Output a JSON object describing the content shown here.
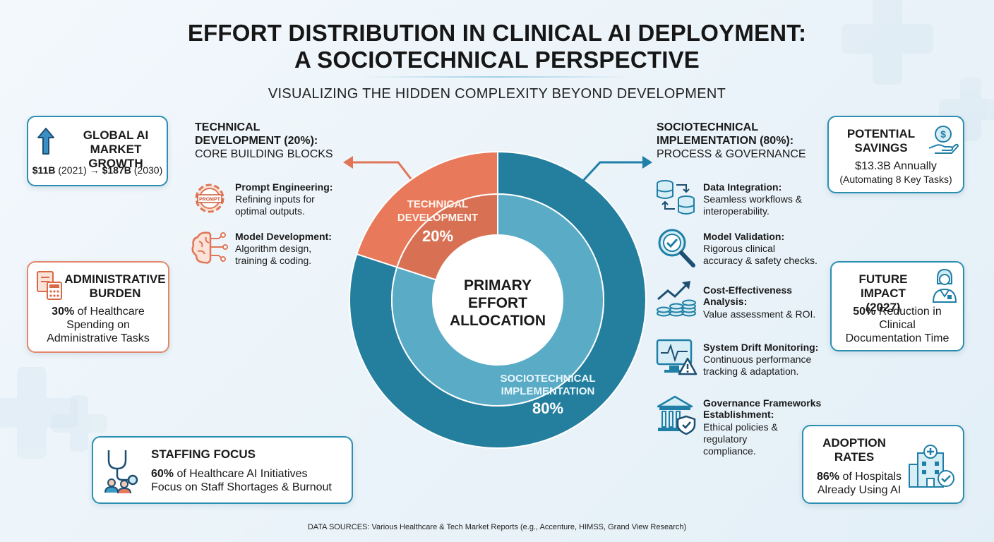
{
  "title_line1": "EFFORT DISTRIBUTION IN CLINICAL AI DEPLOYMENT:",
  "title_line2": "A SOCIOTECHNICAL PERSPECTIVE",
  "subtitle": "VISUALIZING THE HIDDEN COMPLEXITY BEYOND DEVELOPMENT",
  "colors": {
    "technical": "#e8795a",
    "sociotechnical": "#2a93b6",
    "card_blue_border": "#2b8fb1",
    "card_orange_border": "#e2876b"
  },
  "chart_data": {
    "type": "pie",
    "center_label": [
      "PRIMARY",
      "EFFORT",
      "ALLOCATION"
    ],
    "slices": [
      {
        "label_lines": [
          "TECHNICAL",
          "DEVELOPMENT"
        ],
        "value": 20,
        "value_label": "20%",
        "color": "#e8795a"
      },
      {
        "label_lines": [
          "SOCIOTECHNICAL",
          "IMPLEMENTATION"
        ],
        "value": 80,
        "value_label": "80%",
        "color": "#2a93b6"
      }
    ]
  },
  "technical_section": {
    "title_lines": [
      "TECHNICAL",
      "DEVELOPMENT (20%):"
    ],
    "subtitle": "CORE BUILDING BLOCKS",
    "items": [
      {
        "title": "Prompt Engineering:",
        "desc_lines": [
          "Refining inputs for",
          "optimal outputs."
        ],
        "icon": "gear-prompt-icon",
        "icon_text": "PROMPT"
      },
      {
        "title": "Model Development:",
        "desc_lines": [
          "Algorithm design,",
          "training & coding."
        ],
        "icon": "brain-circuit-icon"
      }
    ]
  },
  "sociotechnical_section": {
    "title_lines": [
      "SOCIOTECHNICAL",
      "IMPLEMENTATION (80%):"
    ],
    "subtitle": "PROCESS & GOVERNANCE",
    "items": [
      {
        "title_lines": [
          "Data Integration:"
        ],
        "desc_lines": [
          "Seamless workflows &",
          "interoperability."
        ],
        "icon": "database-sync-icon"
      },
      {
        "title_lines": [
          "Model Validation:"
        ],
        "desc_lines": [
          "Rigorous clinical",
          "accuracy & safety checks."
        ],
        "icon": "magnifier-check-icon"
      },
      {
        "title_lines": [
          "Cost-Effectiveness",
          "Analysis:"
        ],
        "desc_lines": [
          "Value assessment & ROI."
        ],
        "icon": "growth-coins-icon"
      },
      {
        "title_lines": [
          "System Drift Monitoring:"
        ],
        "desc_lines": [
          "Continuous performance",
          "tracking & adaptation."
        ],
        "icon": "monitor-warning-icon"
      },
      {
        "title_lines": [
          "Governance Frameworks",
          "Establishment:"
        ],
        "desc_lines": [
          "Ethical policies &",
          "regulatory",
          "compliance."
        ],
        "icon": "institution-shield-icon"
      }
    ]
  },
  "cards": {
    "global_ai": {
      "title_lines": [
        "GLOBAL AI",
        "MARKET GROWTH"
      ],
      "v1": "$11B",
      "y1": "(2021)",
      "arrow": "→",
      "v2": "$187B",
      "y2": "(2030)",
      "icon": "arrow-up-icon"
    },
    "admin_burden": {
      "title_lines": [
        "ADMINISTRATIVE",
        "BURDEN"
      ],
      "pct": "30%",
      "text1": "of Healthcare",
      "text2": "Spending on",
      "text3": "Administrative Tasks",
      "icon": "documents-calculator-icon"
    },
    "staffing": {
      "title": "STAFFING FOCUS",
      "pct": "60%",
      "text1": "of Healthcare AI Initiatives",
      "text2": "Focus on Staff Shortages & Burnout",
      "icon": "stethoscope-staff-icon"
    },
    "savings": {
      "title_lines": [
        "POTENTIAL",
        "SAVINGS"
      ],
      "line1": "$13.3B Annually",
      "line2": "(Automating 8 Key Tasks)",
      "icon": "hand-coin-icon"
    },
    "future": {
      "title_lines": [
        "FUTURE IMPACT",
        "(2027)"
      ],
      "pct": "50%",
      "text1": "Reduction in",
      "text2": "Clinical",
      "text3": "Documentation Time",
      "icon": "doctor-icon"
    },
    "adoption": {
      "title_lines": [
        "ADOPTION",
        "RATES"
      ],
      "pct": "86%",
      "text1": "of Hospitals",
      "text2": "Already Using AI",
      "icon": "hospital-check-icon"
    }
  },
  "footer": "DATA SOURCES: Various Healthcare & Tech Market Reports (e.g., Accenture, HIMSS, Grand View Research)"
}
